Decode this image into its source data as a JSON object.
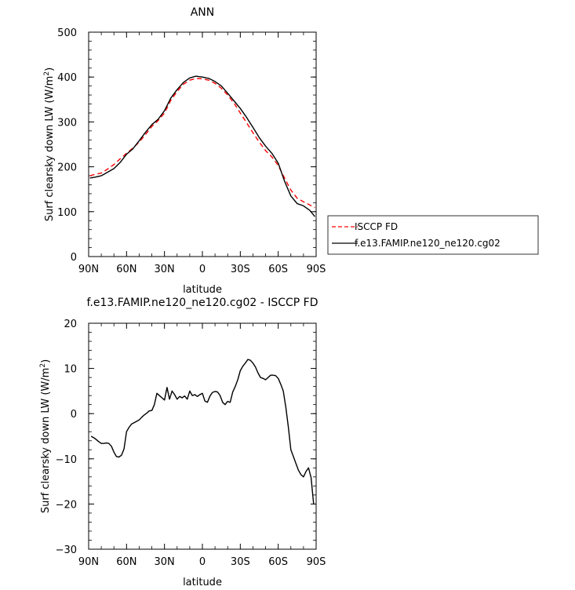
{
  "chart_data": [
    {
      "type": "line",
      "title": "ANN",
      "xlabel": "latitude",
      "ylabel": "Surf clearsky down LW (W/m",
      "ylabel_sup": "2",
      "ylabel_close": ")",
      "xlim": [
        90,
        -90
      ],
      "ylim": [
        0,
        500
      ],
      "xticks": [
        90,
        60,
        30,
        0,
        -30,
        -60,
        -90
      ],
      "xticklabels": [
        "90N",
        "60N",
        "30N",
        "0",
        "30S",
        "60S",
        "90S"
      ],
      "yticks": [
        0,
        100,
        200,
        300,
        400,
        500
      ],
      "yticklabels": [
        "0",
        "100",
        "200",
        "300",
        "400",
        "500"
      ],
      "legend": "outside-right",
      "series": [
        {
          "name": "ISCCP FD",
          "color": "#ff0000",
          "dash": "dashed",
          "x": [
            89,
            85,
            80,
            75,
            70,
            65,
            60,
            55,
            50,
            45,
            40,
            35,
            30,
            25,
            20,
            15,
            10,
            5,
            0,
            -5,
            -10,
            -15,
            -20,
            -25,
            -30,
            -35,
            -40,
            -45,
            -50,
            -55,
            -60,
            -65,
            -70,
            -75,
            -80,
            -85,
            -89
          ],
          "y": [
            180,
            183,
            186,
            195,
            205,
            218,
            230,
            242,
            255,
            272,
            290,
            303,
            320,
            348,
            368,
            384,
            393,
            397,
            396,
            393,
            386,
            375,
            360,
            342,
            320,
            298,
            276,
            255,
            236,
            222,
            203,
            175,
            148,
            130,
            122,
            115,
            109
          ]
        },
        {
          "name": "f.e13.FAMIP.ne120_ne120.cg02",
          "color": "#000000",
          "dash": "solid",
          "x": [
            89,
            85,
            80,
            75,
            70,
            65,
            60,
            55,
            50,
            45,
            40,
            35,
            30,
            25,
            20,
            15,
            10,
            5,
            0,
            -5,
            -10,
            -15,
            -20,
            -25,
            -30,
            -35,
            -40,
            -45,
            -50,
            -55,
            -60,
            -65,
            -70,
            -75,
            -80,
            -85,
            -89
          ],
          "y": [
            175,
            177,
            180,
            188,
            196,
            210,
            228,
            240,
            258,
            277,
            294,
            306,
            325,
            353,
            372,
            388,
            398,
            402,
            400,
            397,
            390,
            380,
            364,
            347,
            330,
            310,
            288,
            265,
            246,
            230,
            208,
            168,
            135,
            118,
            113,
            103,
            89
          ]
        }
      ]
    },
    {
      "type": "line",
      "title": "f.e13.FAMIP.ne120_ne120.cg02 - ISCCP FD",
      "xlabel": "latitude",
      "ylabel": "Surf clearsky down LW (W/m",
      "ylabel_sup": "2",
      "ylabel_close": ")",
      "xlim": [
        90,
        -90
      ],
      "ylim": [
        -30,
        20
      ],
      "xticks": [
        90,
        60,
        30,
        0,
        -30,
        -60,
        -90
      ],
      "xticklabels": [
        "90N",
        "60N",
        "30N",
        "0",
        "30S",
        "60S",
        "90S"
      ],
      "yticks": [
        -30,
        -20,
        -10,
        0,
        10,
        20
      ],
      "yticklabels": [
        "−30",
        "−20",
        "−10",
        "0",
        "10",
        "20"
      ],
      "series": [
        {
          "color": "#000000",
          "dash": "solid",
          "x": [
            88,
            85,
            82,
            80,
            78,
            76,
            74,
            72,
            70,
            68,
            66,
            64,
            62,
            60,
            58,
            56,
            54,
            52,
            50,
            48,
            46,
            44,
            42,
            40,
            38,
            36,
            34,
            32,
            30,
            28,
            26,
            24,
            22,
            20,
            18,
            16,
            14,
            12,
            10,
            8,
            6,
            4,
            2,
            0,
            -2,
            -4,
            -6,
            -8,
            -10,
            -12,
            -14,
            -16,
            -18,
            -20,
            -22,
            -24,
            -26,
            -28,
            -30,
            -32,
            -34,
            -36,
            -38,
            -40,
            -42,
            -44,
            -46,
            -48,
            -50,
            -52,
            -54,
            -56,
            -58,
            -60,
            -62,
            -64,
            -66,
            -68,
            -70,
            -72,
            -74,
            -76,
            -78,
            -80,
            -82,
            -84,
            -86,
            -88
          ],
          "y": [
            -5.0,
            -5.5,
            -6.2,
            -6.6,
            -6.6,
            -6.5,
            -6.6,
            -7.2,
            -8.5,
            -9.5,
            -9.6,
            -9.2,
            -7.8,
            -4.0,
            -3.0,
            -2.3,
            -2.0,
            -1.7,
            -1.4,
            -0.8,
            -0.3,
            0.1,
            0.6,
            0.7,
            2.0,
            4.5,
            4.0,
            3.5,
            3.0,
            5.8,
            3.2,
            5.0,
            4.2,
            3.2,
            3.8,
            3.5,
            3.9,
            3.2,
            5.0,
            4.0,
            4.2,
            3.8,
            4.2,
            4.5,
            2.8,
            2.5,
            3.9,
            4.7,
            4.9,
            4.8,
            4.0,
            2.5,
            2.0,
            2.7,
            2.5,
            4.8,
            6.0,
            7.5,
            9.5,
            10.5,
            11.2,
            12.0,
            11.8,
            11.2,
            10.3,
            9.0,
            8.0,
            7.8,
            7.5,
            8.0,
            8.5,
            8.5,
            8.4,
            7.8,
            6.5,
            5.0,
            1.5,
            -3.0,
            -8.0,
            -9.5,
            -11.0,
            -12.5,
            -13.5,
            -14.0,
            -12.8,
            -12.0,
            -14.2,
            -20.0
          ]
        }
      ]
    }
  ]
}
